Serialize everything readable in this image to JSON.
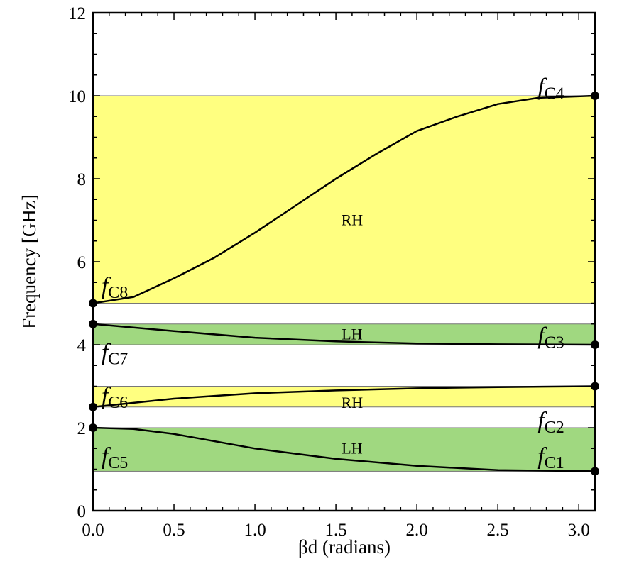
{
  "chart_data": {
    "type": "line",
    "title": "",
    "xlabel": "βd (radians)",
    "ylabel": "Frequency [GHz]",
    "xlim": [
      0,
      3.1
    ],
    "ylim": [
      0,
      12
    ],
    "xticks": [
      "0.0",
      "0.5",
      "1.0",
      "1.5",
      "2.0",
      "2.5",
      "3.0"
    ],
    "xtick_values": [
      0,
      0.5,
      1.0,
      1.5,
      2.0,
      2.5,
      3.0
    ],
    "yticks": [
      "0",
      "2",
      "4",
      "6",
      "8",
      "10",
      "12"
    ],
    "ytick_values": [
      0,
      2,
      4,
      6,
      8,
      10,
      12
    ],
    "grid": false,
    "bands": [
      {
        "label": "RH",
        "from": 5.0,
        "to": 10.0,
        "color": "#ffff80",
        "label_at": [
          1.6,
          7.0
        ]
      },
      {
        "label": "LH",
        "from": 4.0,
        "to": 4.5,
        "color": "#a0d880",
        "label_at": [
          1.6,
          4.25
        ]
      },
      {
        "label": "RH",
        "from": 2.5,
        "to": 3.0,
        "color": "#ffff80",
        "label_at": [
          1.6,
          2.6
        ]
      },
      {
        "label": "LH",
        "from": 0.95,
        "to": 2.0,
        "color": "#a0d880",
        "label_at": [
          1.6,
          1.5
        ]
      }
    ],
    "series": [
      {
        "x": [
          0,
          0.25,
          0.5,
          0.75,
          1.0,
          1.25,
          1.5,
          1.75,
          2.0,
          2.25,
          2.5,
          2.75,
          3.1
        ],
        "y": [
          5.0,
          5.15,
          5.6,
          6.1,
          6.7,
          7.35,
          8.0,
          8.6,
          9.15,
          9.5,
          9.8,
          9.95,
          10.0
        ]
      },
      {
        "x": [
          0,
          0.5,
          1.0,
          1.5,
          2.0,
          2.5,
          3.1
        ],
        "y": [
          4.5,
          4.33,
          4.17,
          4.08,
          4.03,
          4.01,
          4.0
        ]
      },
      {
        "x": [
          0,
          0.5,
          1.0,
          1.5,
          2.0,
          2.5,
          3.1
        ],
        "y": [
          2.5,
          2.7,
          2.83,
          2.9,
          2.95,
          2.98,
          3.0
        ]
      },
      {
        "x": [
          0,
          0.25,
          0.5,
          1.0,
          1.5,
          2.0,
          2.5,
          3.1
        ],
        "y": [
          2.0,
          1.97,
          1.85,
          1.5,
          1.25,
          1.08,
          0.98,
          0.95
        ]
      }
    ],
    "points": [
      {
        "label": "C1",
        "x": 3.1,
        "y": 0.95,
        "label_at": [
          2.85,
          1.3
        ]
      },
      {
        "label": "C2",
        "x": 3.1,
        "y": 3.0,
        "label_at": [
          2.85,
          2.15
        ]
      },
      {
        "label": "C3",
        "x": 3.1,
        "y": 4.0,
        "label_at": [
          2.85,
          4.2
        ]
      },
      {
        "label": "C4",
        "x": 3.1,
        "y": 10.0,
        "label_at": [
          2.85,
          10.2
        ]
      },
      {
        "label": "C5",
        "x": 0,
        "y": 2.0,
        "label_at": [
          0.03,
          1.3
        ]
      },
      {
        "label": "C6",
        "x": 0,
        "y": 2.5,
        "label_at": [
          0.03,
          2.75
        ]
      },
      {
        "label": "C7",
        "x": 0,
        "y": 4.5,
        "label_at": [
          0.03,
          3.8
        ]
      },
      {
        "label": "C8",
        "x": 0,
        "y": 5.0,
        "label_at": [
          0.03,
          5.4
        ]
      }
    ],
    "point_prefix": "f"
  }
}
